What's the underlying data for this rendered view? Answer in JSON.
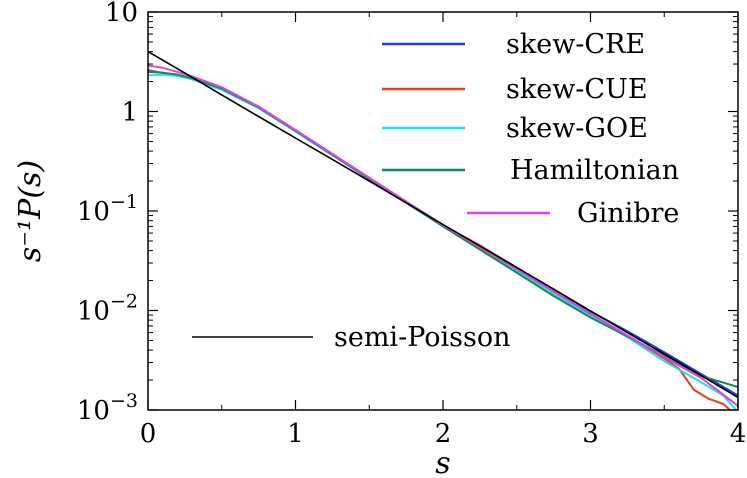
{
  "chart_data": {
    "type": "line",
    "xlabel": "s",
    "ylabel": "s⁻¹P(s)",
    "xlim": [
      0,
      4
    ],
    "ylim": [
      0.001,
      10
    ],
    "yscale": "log",
    "grid": false,
    "legend_position": "right",
    "x_ticks": [
      {
        "value": 0,
        "label": "0"
      },
      {
        "value": 1,
        "label": "1"
      },
      {
        "value": 2,
        "label": "2"
      },
      {
        "value": 3,
        "label": "3"
      },
      {
        "value": 4,
        "label": "4"
      }
    ],
    "y_ticks": [
      {
        "value": 10,
        "base": "10",
        "exp": ""
      },
      {
        "value": 1,
        "base": "1",
        "exp": ""
      },
      {
        "value": 0.1,
        "base": "10",
        "exp": "−1"
      },
      {
        "value": 0.01,
        "base": "10",
        "exp": "−2"
      },
      {
        "value": 0.001,
        "base": "10",
        "exp": "−3"
      }
    ],
    "series": [
      {
        "name": "skew-CRE",
        "color": "#1f3fd6",
        "x": [
          0.0,
          0.1,
          0.2,
          0.3,
          0.4,
          0.5,
          0.75,
          1.0,
          1.5,
          2.0,
          2.5,
          3.0,
          3.25,
          3.5,
          3.75,
          4.0
        ],
        "y": [
          2.6,
          2.45,
          2.3,
          2.12,
          1.95,
          1.7,
          1.12,
          0.65,
          0.215,
          0.072,
          0.026,
          0.0098,
          0.0062,
          0.0038,
          0.0023,
          0.0014
        ]
      },
      {
        "name": "skew-CUE",
        "color": "#e8401a",
        "x": [
          0.0,
          0.1,
          0.2,
          0.3,
          0.5,
          0.75,
          1.0,
          1.5,
          2.0,
          2.25,
          2.5,
          3.0,
          3.25,
          3.5,
          3.6,
          3.7,
          3.8,
          3.9,
          4.0
        ],
        "y": [
          2.55,
          2.45,
          2.3,
          2.15,
          1.7,
          1.1,
          0.64,
          0.21,
          0.072,
          0.045,
          0.027,
          0.0092,
          0.0056,
          0.0033,
          0.0026,
          0.0016,
          0.0013,
          0.00115,
          0.00085
        ]
      },
      {
        "name": "skew-GOE",
        "color": "#22e0e0",
        "x": [
          0.0,
          0.1,
          0.2,
          0.3,
          0.5,
          0.75,
          1.0,
          1.5,
          2.0,
          2.5,
          3.0,
          3.25,
          3.5,
          3.75,
          3.9,
          4.0
        ],
        "y": [
          2.3,
          2.35,
          2.28,
          2.1,
          1.65,
          1.08,
          0.63,
          0.21,
          0.07,
          0.025,
          0.0088,
          0.0054,
          0.0031,
          0.0019,
          0.0014,
          0.00095
        ]
      },
      {
        "name": "Hamiltonian",
        "color": "#138a55",
        "x": [
          0.0,
          0.1,
          0.2,
          0.3,
          0.5,
          0.75,
          1.0,
          1.5,
          2.0,
          2.5,
          2.75,
          3.0,
          3.25,
          3.5,
          3.75,
          4.0
        ],
        "y": [
          2.5,
          2.45,
          2.35,
          2.15,
          1.7,
          1.1,
          0.64,
          0.21,
          0.07,
          0.024,
          0.014,
          0.0085,
          0.0055,
          0.0035,
          0.0022,
          0.0017
        ]
      },
      {
        "name": "Ginibre",
        "color": "#e040e0",
        "x": [
          0.0,
          0.1,
          0.2,
          0.3,
          0.5,
          0.75,
          1.0,
          1.5,
          2.0,
          2.5,
          3.0,
          3.5,
          3.75,
          4.0
        ],
        "y": [
          2.9,
          2.75,
          2.5,
          2.25,
          1.75,
          1.12,
          0.65,
          0.215,
          0.072,
          0.026,
          0.0093,
          0.0034,
          0.0021,
          0.0011
        ]
      },
      {
        "name": "semi-Poisson",
        "color": "#000000",
        "x": [
          0.0,
          0.25,
          0.5,
          0.75,
          1.0,
          1.25,
          1.5,
          1.75,
          2.0,
          2.25,
          2.5,
          2.75,
          3.0,
          3.25,
          3.5,
          3.75,
          4.0
        ],
        "y": [
          4.0,
          2.43,
          1.47,
          0.89,
          0.54,
          0.33,
          0.2,
          0.121,
          0.073,
          0.0446,
          0.027,
          0.0164,
          0.0099,
          0.006,
          0.00365,
          0.00222,
          0.00134
        ]
      }
    ]
  }
}
